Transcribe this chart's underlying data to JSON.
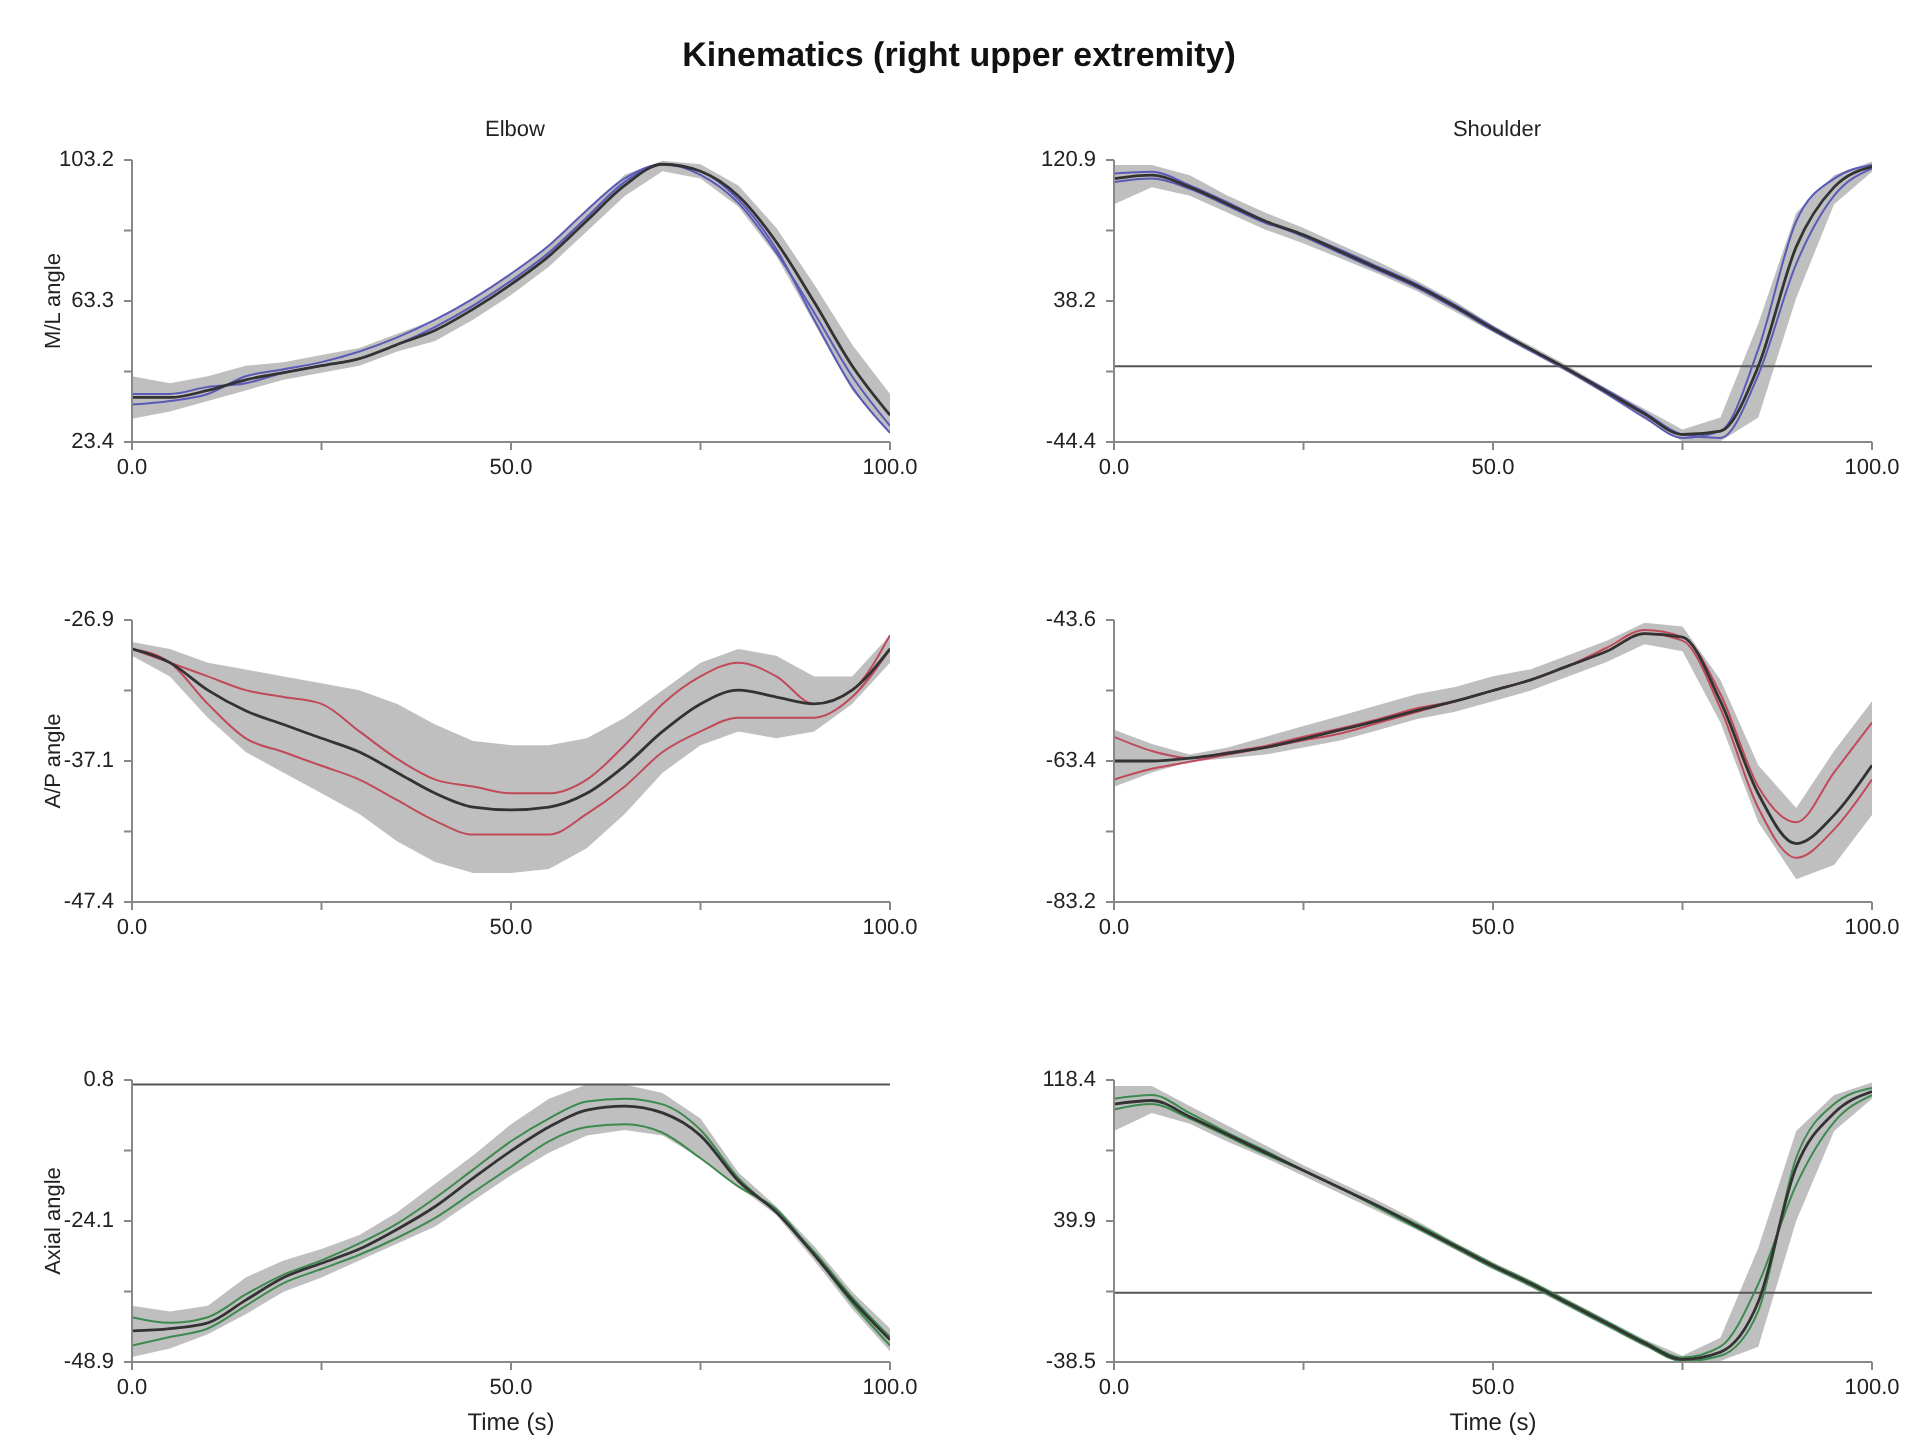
{
  "chart_data": [
    {
      "type": "line",
      "title": "Kinematics (right upper extremity)",
      "subtitle": "Elbow",
      "ylabel": "M/L angle",
      "marker": "none",
      "x": [
        0,
        5,
        10,
        15,
        20,
        25,
        30,
        35,
        40,
        45,
        50,
        55,
        60,
        65,
        70,
        75,
        80,
        85,
        90,
        95,
        100
      ],
      "xlim": [
        0,
        100
      ],
      "xticks": [
        {
          "value": 0,
          "label": "0.0"
        },
        {
          "value": 25,
          "label": null
        },
        {
          "value": 50,
          "label": "50.0"
        },
        {
          "value": 75,
          "label": null
        },
        {
          "value": 100,
          "label": "100.0"
        }
      ],
      "ylim": [
        23.4,
        103.2
      ],
      "yticks": [
        23.4,
        {
          "value": 43.35,
          "label": null
        },
        63.3,
        {
          "value": 83.25,
          "label": null
        },
        103.2
      ],
      "series": [
        {
          "color": "#333333",
          "values": [
            36,
            36,
            38,
            41,
            43,
            45,
            47,
            51,
            55,
            61,
            68,
            76,
            86,
            96,
            102,
            100,
            93,
            80,
            63,
            45,
            31
          ],
          "lower": [
            30,
            32,
            35,
            38,
            41,
            43,
            45,
            49,
            52,
            58,
            65,
            73,
            83,
            93,
            100,
            98,
            90,
            76,
            57,
            38,
            26
          ],
          "upper": [
            42,
            40,
            42,
            45,
            46,
            48,
            50,
            54,
            58,
            64,
            71,
            79,
            89,
            99,
            103,
            102,
            96,
            84,
            68,
            51,
            37
          ]
        },
        {
          "color": "#5a5ab8",
          "values": [
            34,
            35,
            37,
            42,
            44,
            46,
            49,
            53,
            58,
            64,
            71,
            79,
            89,
            98,
            102,
            100,
            92,
            78,
            58,
            39,
            26
          ]
        },
        {
          "color": "#5a5ab8",
          "values": [
            37,
            37,
            39,
            40,
            43,
            45,
            47,
            51,
            56,
            62,
            69,
            77,
            87,
            97,
            102,
            99,
            91,
            77,
            60,
            42,
            28
          ]
        }
      ]
    },
    {
      "type": "line",
      "subtitle": "Shoulder",
      "marker": "none",
      "x": [
        0,
        5,
        10,
        15,
        20,
        25,
        30,
        35,
        40,
        45,
        50,
        55,
        60,
        65,
        70,
        75,
        80,
        85,
        90,
        95,
        100
      ],
      "xlim": [
        0,
        100
      ],
      "xticks": [
        {
          "value": 0,
          "label": "0.0"
        },
        {
          "value": 25,
          "label": null
        },
        {
          "value": 50,
          "label": "50.0"
        },
        {
          "value": 75,
          "label": null
        },
        {
          "value": 100,
          "label": "100.0"
        }
      ],
      "ylim": [
        -44.4,
        120.9
      ],
      "yticks": [
        -44.4,
        {
          "value": -3.075,
          "label": null
        },
        {
          "value": 38.25,
          "label": "38.2"
        },
        {
          "value": 79.575,
          "label": null
        },
        120.9
      ],
      "ref_lines": [
        {
          "axis": "y",
          "value": 0,
          "color": "#555555"
        }
      ],
      "series": [
        {
          "color": "#333333",
          "values": [
            110,
            112,
            105,
            95,
            85,
            77,
            67,
            57,
            47,
            35,
            22,
            10,
            -2,
            -15,
            -28,
            -40,
            -38,
            0,
            70,
            105,
            117
          ],
          "lower": [
            95,
            105,
            100,
            90,
            80,
            72,
            63,
            54,
            44,
            32,
            20,
            8,
            -4,
            -17,
            -31,
            -44,
            -44,
            -30,
            40,
            95,
            114
          ],
          "upper": [
            118,
            118,
            112,
            100,
            90,
            81,
            71,
            61,
            50,
            38,
            24,
            12,
            0,
            -13,
            -25,
            -37,
            -30,
            25,
            90,
            112,
            120
          ]
        },
        {
          "color": "#5a5ab8",
          "values": [
            113,
            114,
            106,
            96,
            85,
            76,
            66,
            56,
            46,
            34,
            21,
            9,
            -3,
            -16,
            -30,
            -42,
            -38,
            10,
            85,
            110,
            118
          ]
        },
        {
          "color": "#5a5ab8",
          "values": [
            108,
            110,
            104,
            94,
            84,
            77,
            68,
            58,
            48,
            36,
            23,
            10,
            -2,
            -14,
            -27,
            -40,
            -42,
            -5,
            60,
            100,
            116
          ]
        }
      ]
    },
    {
      "type": "line",
      "ylabel": "A/P angle",
      "marker": "none",
      "x": [
        0,
        5,
        10,
        15,
        20,
        25,
        30,
        35,
        40,
        45,
        50,
        55,
        60,
        65,
        70,
        75,
        80,
        85,
        90,
        95,
        100
      ],
      "xlim": [
        0,
        100
      ],
      "xticks": [
        {
          "value": 0,
          "label": "0.0"
        },
        {
          "value": 25,
          "label": null
        },
        {
          "value": 50,
          "label": "50.0"
        },
        {
          "value": 75,
          "label": null
        },
        {
          "value": 100,
          "label": "100.0"
        }
      ],
      "ylim": [
        -47.4,
        -26.9
      ],
      "yticks": [
        -47.4,
        {
          "value": -42.275,
          "label": null
        },
        {
          "value": -37.15,
          "label": "-37.1"
        },
        {
          "value": -32.025,
          "label": null
        },
        -26.9
      ],
      "series": [
        {
          "color": "#333333",
          "values": [
            -29,
            -30,
            -32,
            -33.5,
            -34.5,
            -35.5,
            -36.5,
            -38,
            -39.5,
            -40.5,
            -40.7,
            -40.5,
            -39.5,
            -37.5,
            -35,
            -33,
            -32,
            -32.5,
            -33,
            -32,
            -29
          ],
          "lower": [
            -29.5,
            -31,
            -34,
            -36.5,
            -38,
            -39.5,
            -41,
            -43,
            -44.5,
            -45.3,
            -45.3,
            -45,
            -43.5,
            -41,
            -38,
            -36,
            -35,
            -35.5,
            -35,
            -33,
            -30
          ],
          "upper": [
            -28.5,
            -29,
            -30,
            -30.5,
            -31,
            -31.5,
            -32,
            -33,
            -34.5,
            -35.7,
            -36,
            -36,
            -35.5,
            -34,
            -32,
            -30,
            -29,
            -29.5,
            -31,
            -31,
            -28
          ]
        },
        {
          "color": "#c04a5a",
          "values": [
            -29,
            -30,
            -31,
            -32,
            -32.5,
            -33,
            -35,
            -37,
            -38.5,
            -39,
            -39.5,
            -39.5,
            -38.5,
            -36,
            -33,
            -31,
            -30,
            -31,
            -33,
            -32,
            -28
          ]
        },
        {
          "color": "#c04a5a",
          "values": [
            -29,
            -30,
            -33,
            -35.5,
            -36.5,
            -37.5,
            -38.5,
            -40,
            -41.5,
            -42.5,
            -42.5,
            -42.5,
            -41,
            -39,
            -36.5,
            -35,
            -34,
            -34,
            -34,
            -32.5,
            -29
          ]
        }
      ]
    },
    {
      "type": "line",
      "marker": "none",
      "x": [
        0,
        5,
        10,
        15,
        20,
        25,
        30,
        35,
        40,
        45,
        50,
        55,
        60,
        65,
        70,
        75,
        80,
        85,
        90,
        95,
        100
      ],
      "xlim": [
        0,
        100
      ],
      "xticks": [
        {
          "value": 0,
          "label": "0.0"
        },
        {
          "value": 25,
          "label": null
        },
        {
          "value": 50,
          "label": "50.0"
        },
        {
          "value": 75,
          "label": null
        },
        {
          "value": 100,
          "label": "100.0"
        }
      ],
      "ylim": [
        -83.2,
        -43.6
      ],
      "yticks": [
        -83.2,
        {
          "value": -73.3,
          "label": null
        },
        -63.4,
        {
          "value": -53.5,
          "label": null
        },
        -43.6
      ],
      "series": [
        {
          "color": "#333333",
          "values": [
            -63.4,
            -63.4,
            -63,
            -62.3,
            -61.5,
            -60.3,
            -59,
            -57.7,
            -56.3,
            -55,
            -53.5,
            -52,
            -50,
            -48,
            -45.5,
            -46,
            -55,
            -68,
            -75,
            -71,
            -64
          ],
          "lower": [
            -67,
            -65,
            -63.5,
            -63,
            -62.5,
            -61.5,
            -60.5,
            -59,
            -57.5,
            -56.5,
            -55,
            -53.5,
            -51.5,
            -49.5,
            -47,
            -48,
            -58,
            -72,
            -80,
            -78,
            -71
          ],
          "upper": [
            -59,
            -61,
            -62.5,
            -61.5,
            -60,
            -58.5,
            -57,
            -55.5,
            -54,
            -53,
            -51.5,
            -50.5,
            -48.5,
            -46.5,
            -44,
            -44.5,
            -52,
            -64,
            -70,
            -62,
            -55
          ]
        },
        {
          "color": "#c04a5a",
          "values": [
            -60,
            -62,
            -63,
            -62.2,
            -61.3,
            -60,
            -58.8,
            -57.5,
            -56,
            -55,
            -53.5,
            -52,
            -50,
            -47.5,
            -45,
            -46,
            -54,
            -67,
            -72,
            -65,
            -58
          ]
        },
        {
          "color": "#c04a5a",
          "values": [
            -66,
            -64.5,
            -63.5,
            -62.5,
            -61.5,
            -60.5,
            -59.5,
            -58,
            -56.5,
            -55,
            -53.5,
            -52,
            -50,
            -48,
            -45.5,
            -46.5,
            -56,
            -70,
            -77,
            -73,
            -66
          ]
        }
      ]
    },
    {
      "type": "line",
      "ylabel": "Axial angle",
      "xlabel": "Time (s)",
      "marker": "none",
      "x": [
        0,
        5,
        10,
        15,
        20,
        25,
        30,
        35,
        40,
        45,
        50,
        55,
        60,
        65,
        70,
        75,
        80,
        85,
        90,
        95,
        100
      ],
      "xlim": [
        0,
        100
      ],
      "xticks": [
        {
          "value": 0,
          "label": "0.0"
        },
        {
          "value": 25,
          "label": null
        },
        {
          "value": 50,
          "label": "50.0"
        },
        {
          "value": 75,
          "label": null
        },
        {
          "value": 100,
          "label": "100.0"
        }
      ],
      "ylim": [
        -48.9,
        0.8
      ],
      "yticks": [
        -48.9,
        {
          "value": -36.475,
          "label": null
        },
        {
          "value": -24.05,
          "label": "-24.1"
        },
        {
          "value": -11.625,
          "label": null
        },
        0.8
      ],
      "ref_lines": [
        {
          "axis": "y",
          "value": 0,
          "color": "#555555"
        }
      ],
      "series": [
        {
          "color": "#333333",
          "values": [
            -43.4,
            -43,
            -42,
            -38,
            -34,
            -31.5,
            -29,
            -25.5,
            -21.5,
            -16.5,
            -11.7,
            -7.5,
            -4.5,
            -3.8,
            -5,
            -9,
            -17,
            -22.5,
            -30,
            -38,
            -45
          ],
          "lower": [
            -48,
            -46.5,
            -44,
            -40.5,
            -36.5,
            -34,
            -31,
            -28,
            -25,
            -20.5,
            -16,
            -12,
            -9,
            -8,
            -9,
            -13,
            -18,
            -23,
            -31,
            -39.5,
            -47
          ],
          "upper": [
            -39,
            -40,
            -39,
            -34,
            -31,
            -29,
            -26.5,
            -22.5,
            -17.5,
            -12.5,
            -7,
            -2.5,
            0,
            0,
            -1.5,
            -6,
            -15.5,
            -21.5,
            -28.5,
            -36.5,
            -43
          ]
        },
        {
          "color": "#3c8a4e",
          "values": [
            -46,
            -44.5,
            -43,
            -39,
            -35,
            -32.5,
            -30,
            -27,
            -23.5,
            -19,
            -14.5,
            -10,
            -7.5,
            -7,
            -8.5,
            -13,
            -18,
            -22,
            -30,
            -38.5,
            -46
          ]
        },
        {
          "color": "#3c8a4e",
          "values": [
            -41,
            -42,
            -41,
            -37,
            -33.5,
            -31,
            -28,
            -24.5,
            -20,
            -15,
            -10,
            -6,
            -3,
            -2.5,
            -3.5,
            -8,
            -16.5,
            -22.5,
            -29.5,
            -37.5,
            -44.5
          ]
        }
      ]
    },
    {
      "type": "line",
      "xlabel": "Time (s)",
      "marker": "none",
      "x": [
        0,
        5,
        10,
        15,
        20,
        25,
        30,
        35,
        40,
        45,
        50,
        55,
        60,
        65,
        70,
        75,
        80,
        85,
        90,
        95,
        100
      ],
      "xlim": [
        0,
        100
      ],
      "xticks": [
        {
          "value": 0,
          "label": "0.0"
        },
        {
          "value": 25,
          "label": null
        },
        {
          "value": 50,
          "label": "50.0"
        },
        {
          "value": 75,
          "label": null
        },
        {
          "value": 100,
          "label": "100.0"
        }
      ],
      "ylim": [
        -38.5,
        118.4
      ],
      "yticks": [
        -38.5,
        {
          "value": 0.725,
          "label": null
        },
        {
          "value": 39.95,
          "label": "39.9"
        },
        {
          "value": 79.175,
          "label": null
        },
        118.4
      ],
      "ref_lines": [
        {
          "axis": "y",
          "value": 0,
          "color": "#555555"
        }
      ],
      "series": [
        {
          "color": "#333333",
          "values": [
            105,
            107,
            98,
            88,
            78,
            68,
            58,
            48,
            37,
            26,
            15,
            5,
            -6,
            -17,
            -28,
            -37,
            -33,
            -5,
            70,
            100,
            112
          ],
          "lower": [
            90,
            100,
            94,
            84,
            75,
            65,
            55,
            45,
            35,
            24,
            13,
            3,
            -8,
            -19,
            -30,
            -38.5,
            -38,
            -30,
            40,
            90,
            108
          ],
          "upper": [
            115,
            115,
            104,
            93,
            82,
            71,
            61,
            51,
            40,
            28,
            17,
            7,
            -4,
            -15,
            -26,
            -35,
            -25,
            25,
            90,
            110,
            117
          ]
        },
        {
          "color": "#3c8a4e",
          "values": [
            108,
            110,
            100,
            89,
            79,
            68,
            58,
            47,
            36,
            25,
            14,
            4,
            -7,
            -18,
            -29,
            -38,
            -35,
            -10,
            75,
            105,
            114
          ]
        },
        {
          "color": "#3c8a4e",
          "values": [
            102,
            105,
            97,
            87,
            77,
            68,
            58,
            48,
            38,
            27,
            16,
            6,
            -5,
            -16,
            -27,
            -36,
            -30,
            5,
            60,
            95,
            110
          ]
        }
      ]
    }
  ]
}
